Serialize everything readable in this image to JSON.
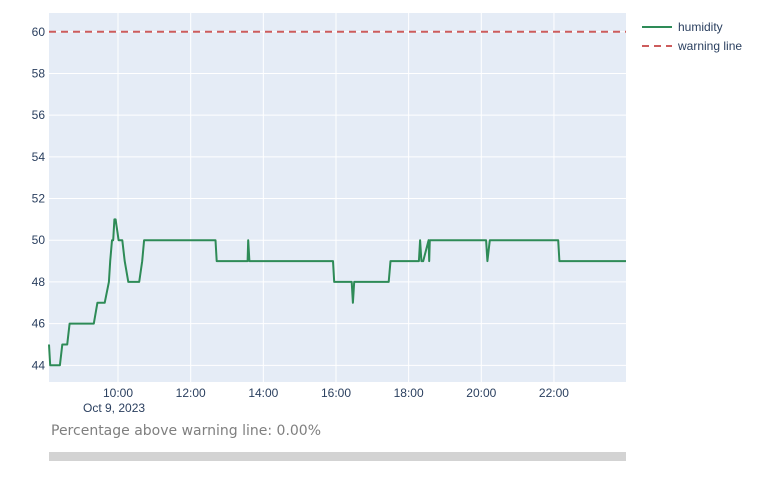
{
  "chart_data": {
    "type": "line",
    "xaxis": {
      "type": "date",
      "range": [
        "2023-10-09 08:06",
        "2023-10-09 23:59"
      ],
      "tick_labels": [
        "10:00",
        "12:00",
        "14:00",
        "16:00",
        "18:00",
        "20:00",
        "22:00"
      ],
      "tick_values": [
        "2023-10-09 10:00",
        "2023-10-09 12:00",
        "2023-10-09 14:00",
        "2023-10-09 16:00",
        "2023-10-09 18:00",
        "2023-10-09 20:00",
        "2023-10-09 22:00"
      ],
      "date_label": "Oct 9, 2023"
    },
    "yaxis": {
      "range": [
        43.2,
        60.9
      ],
      "tick_values": [
        44,
        46,
        48,
        50,
        52,
        54,
        56,
        58,
        60
      ],
      "tick_labels": [
        "44",
        "46",
        "48",
        "50",
        "52",
        "54",
        "56",
        "58",
        "60"
      ]
    },
    "grid": true,
    "legend_position": "top-right",
    "series": [
      {
        "name": "humidity",
        "color": "#2e8b57",
        "style": "solid",
        "x": [
          "2023-10-09 08:06",
          "2023-10-09 08:08",
          "2023-10-09 08:10",
          "2023-10-09 08:24",
          "2023-10-09 08:28",
          "2023-10-09 08:36",
          "2023-10-09 08:40",
          "2023-10-09 09:00",
          "2023-10-09 09:04",
          "2023-10-09 09:20",
          "2023-10-09 09:26",
          "2023-10-09 09:36",
          "2023-10-09 09:38",
          "2023-10-09 09:45",
          "2023-10-09 09:47",
          "2023-10-09 09:50",
          "2023-10-09 09:52",
          "2023-10-09 09:54",
          "2023-10-09 09:56",
          "2023-10-09 10:01",
          "2023-10-09 10:03",
          "2023-10-09 10:07",
          "2023-10-09 10:11",
          "2023-10-09 10:17",
          "2023-10-09 10:33",
          "2023-10-09 10:35",
          "2023-10-09 10:40",
          "2023-10-09 10:43",
          "2023-10-09 12:41",
          "2023-10-09 12:43",
          "2023-10-09 13:34",
          "2023-10-09 13:35",
          "2023-10-09 13:37",
          "2023-10-09 13:38",
          "2023-10-09 15:55",
          "2023-10-09 15:57",
          "2023-10-09 16:26",
          "2023-10-09 16:28",
          "2023-10-09 16:30",
          "2023-10-09 16:32",
          "2023-10-09 17:27",
          "2023-10-09 17:30",
          "2023-10-09 18:17",
          "2023-10-09 18:19",
          "2023-10-09 18:21",
          "2023-10-09 18:24",
          "2023-10-09 18:33",
          "2023-10-09 18:34",
          "2023-10-09 18:35",
          "2023-10-09 18:37",
          "2023-10-09 18:38",
          "2023-10-09 18:40",
          "2023-10-09 20:08",
          "2023-10-09 20:10",
          "2023-10-09 20:14",
          "2023-10-09 20:16",
          "2023-10-09 22:07",
          "2023-10-09 22:09",
          "2023-10-09 23:59"
        ],
        "y": [
          45,
          44,
          44,
          44,
          45,
          45,
          46,
          46,
          46,
          46,
          47,
          47,
          47,
          48,
          49,
          50,
          50,
          51,
          51,
          50,
          50,
          50,
          49,
          48,
          48,
          48,
          49,
          50,
          50,
          49,
          49,
          50,
          49,
          49,
          49,
          48,
          48,
          47,
          48,
          48,
          48,
          49,
          49,
          50,
          49,
          49,
          50,
          49,
          50,
          50,
          50,
          50,
          50,
          49,
          50,
          50,
          50,
          49,
          49
        ]
      },
      {
        "name": "warning line",
        "color": "#cd5c5c",
        "style": "dash",
        "x": [
          "2023-10-09 08:06",
          "2023-10-09 23:59"
        ],
        "y": [
          60,
          60
        ]
      }
    ]
  },
  "annotation": {
    "text": "Percentage above warning line: 0.00%",
    "value": 0
  },
  "colors": {
    "plot_bg": "#e5ecf6",
    "grid": "#ffffff",
    "tick_text": "#2a3f5f",
    "annotation_text": "#7f7f7f",
    "progress_track": "#d3d3d3"
  }
}
